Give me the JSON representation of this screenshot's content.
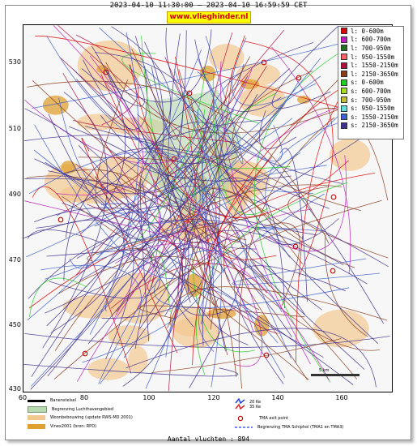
{
  "header": {
    "title": "2023-04-10 11:30:00 – 2023-04-10 16:59:59 CET",
    "site": "www.vlieghinder.nl"
  },
  "axes": {
    "y_ticks": [
      "530",
      "510",
      "490",
      "470",
      "450",
      "430"
    ],
    "x_ticks": [
      "60",
      "80",
      "100",
      "120",
      "140",
      "160"
    ]
  },
  "legend": {
    "items": [
      {
        "label": "l: 0-600m",
        "color": "#e00000"
      },
      {
        "label": "l: 600-700m",
        "color": "#c020c0"
      },
      {
        "label": "l: 700-950m",
        "color": "#207020"
      },
      {
        "label": "l: 950-1550m",
        "color": "#ff6060"
      },
      {
        "label": "l: 1550-2150m",
        "color": "#b01040"
      },
      {
        "label": "l: 2150-3650m",
        "color": "#8b3a1a"
      },
      {
        "label": "s: 0-600m",
        "color": "#20d020"
      },
      {
        "label": "s: 600-700m",
        "color": "#a0e020"
      },
      {
        "label": "s: 700-950m",
        "color": "#c0c030"
      },
      {
        "label": "s: 950-1550m",
        "color": "#60e0e0"
      },
      {
        "label": "s: 1550-2150m",
        "color": "#4060d0"
      },
      {
        "label": "s: 2150-3650m",
        "color": "#403090"
      }
    ]
  },
  "map_legend": {
    "runway": "Banenstelsel",
    "airport_boundary": "Begrenzing Luchthavengebied",
    "housing": "Woonbebouwing (update RWS-MD 2001)",
    "vinex": "Vinex2001 (bron: RPD)",
    "noise_20": "20 Ke",
    "noise_35": "35 Ke",
    "tma_exit": "TMA exit point",
    "tma_boundary": "Begrenzing TMA Schiphol  (TMA1 en TMA3)"
  },
  "scale": {
    "label": "5 km"
  },
  "footer": {
    "count": "Aantal vluchten : 894"
  },
  "colors": {
    "housing": "#f2c890",
    "vinex": "#e0a030",
    "green": "#b8d8b0"
  }
}
